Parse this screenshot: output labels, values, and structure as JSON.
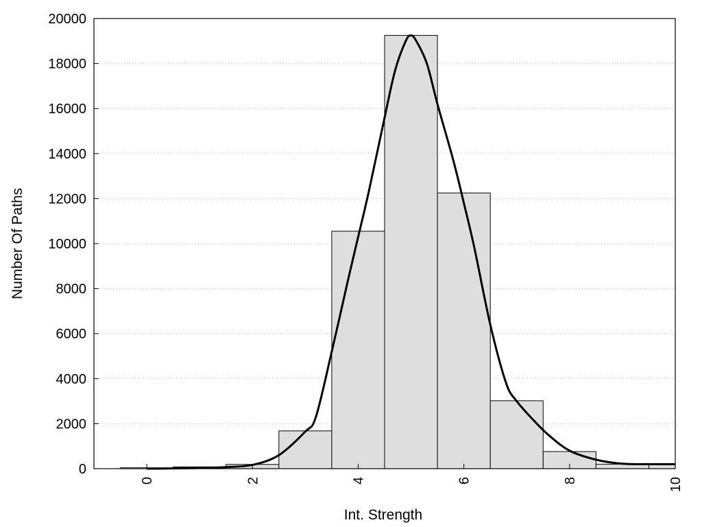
{
  "chart_data": {
    "type": "bar",
    "title": "",
    "xlabel": "Int. Strength",
    "ylabel": "Number Of Paths",
    "xlim": [
      -1,
      10
    ],
    "ylim": [
      0,
      20000
    ],
    "x_ticks": [
      0,
      2,
      4,
      6,
      8,
      10
    ],
    "y_ticks": [
      0,
      2000,
      4000,
      6000,
      8000,
      10000,
      12000,
      14000,
      16000,
      18000,
      20000
    ],
    "grid": "horizontal-dotted",
    "legend": "none",
    "bar_width": 1,
    "bars": [
      {
        "x": 0,
        "value": 40
      },
      {
        "x": 1,
        "value": 80
      },
      {
        "x": 2,
        "value": 190
      },
      {
        "x": 3,
        "value": 1680
      },
      {
        "x": 4,
        "value": 10550
      },
      {
        "x": 5,
        "value": 19250
      },
      {
        "x": 6,
        "value": 12250
      },
      {
        "x": 7,
        "value": 3020
      },
      {
        "x": 8,
        "value": 760
      },
      {
        "x": 9,
        "value": 200
      },
      {
        "x": 10,
        "value": 200
      }
    ],
    "curve": {
      "x": [
        0,
        0.5,
        1,
        1.5,
        2,
        2.5,
        3,
        3.2,
        3.5,
        3.8,
        4,
        4.2,
        4.5,
        4.7,
        4.9,
        5,
        5.1,
        5.3,
        5.5,
        5.8,
        6,
        6.2,
        6.5,
        6.8,
        7,
        7.3,
        7.6,
        8,
        8.5,
        9,
        9.5,
        10
      ],
      "y": [
        0,
        10,
        30,
        70,
        170,
        600,
        1650,
        2300,
        5200,
        8300,
        10300,
        12300,
        15600,
        17700,
        19000,
        19250,
        19000,
        18000,
        16200,
        13700,
        11800,
        9800,
        6400,
        3800,
        3000,
        2200,
        1500,
        800,
        400,
        220,
        200,
        200
      ],
      "color": "#000000"
    },
    "colors": {
      "bar_fill": "#dedede",
      "bar_stroke": "#000000",
      "grid": "#bbbbbb"
    }
  }
}
